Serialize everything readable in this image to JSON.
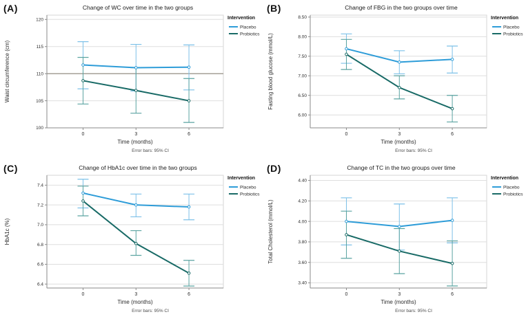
{
  "figure": {
    "legend": {
      "title": "Intervention",
      "items": [
        "Placebo",
        "Probiotics"
      ]
    },
    "colors": {
      "series_lines": [
        "#2D9CD8",
        "#186A66"
      ],
      "series_error": [
        "#7CC0E8",
        "#5AA3A1"
      ],
      "grid": "#DEDEDE",
      "reference_line": "#ABA69E",
      "axis": "#8A8A8A",
      "frame": "#D6D6D6",
      "text": "#2B2B2B",
      "title_text": "#1A1A1A"
    }
  },
  "chart_data": [
    {
      "id": "A",
      "panel_label": "(A)",
      "type": "line",
      "title": "Change of WC over time in the two groups",
      "ylabel": "Waist circumference (cm)",
      "xlabel": "Time (months)",
      "footnote": "Error bars: 95% CI",
      "x_categories": [
        "0",
        "3",
        "6"
      ],
      "ylim": [
        100,
        120.8
      ],
      "ytick_values": [
        100,
        105,
        110,
        115,
        120
      ],
      "ytick_labels": [
        "100",
        "105",
        "110",
        "115",
        "120"
      ],
      "reference_line": 110,
      "legend_position": "right",
      "grid": true,
      "series": [
        {
          "name": "Placebo",
          "values": [
            111.6,
            111.1,
            111.2
          ],
          "ci_low": [
            107.2,
            106.8,
            107.0
          ],
          "ci_high": [
            115.9,
            115.4,
            115.3
          ]
        },
        {
          "name": "Probiotics",
          "values": [
            108.7,
            106.9,
            105.0
          ],
          "ci_low": [
            104.4,
            102.7,
            101.0
          ],
          "ci_high": [
            113.0,
            111.1,
            109.1
          ]
        }
      ]
    },
    {
      "id": "B",
      "panel_label": "(B)",
      "type": "line",
      "title": "Change of FBG in the two groups over time",
      "ylabel": "Fasting blood glucose (mmol/L)",
      "xlabel": "Time (months)",
      "footnote": "Error bars: 95% CI",
      "x_categories": [
        "0",
        "3",
        "6"
      ],
      "ylim": [
        5.67,
        8.55
      ],
      "ytick_values": [
        6.0,
        6.5,
        7.0,
        7.5,
        8.0,
        8.5
      ],
      "ytick_labels": [
        "6.00",
        "6.50",
        "7.00",
        "7.50",
        "8.00",
        "8.50"
      ],
      "reference_line": null,
      "legend_position": "right",
      "grid": true,
      "series": [
        {
          "name": "Placebo",
          "values": [
            7.69,
            7.35,
            7.42
          ],
          "ci_low": [
            7.32,
            7.05,
            7.07
          ],
          "ci_high": [
            8.07,
            7.64,
            7.76
          ]
        },
        {
          "name": "Probiotics",
          "values": [
            7.55,
            6.7,
            6.16
          ],
          "ci_low": [
            7.16,
            6.41,
            5.82
          ],
          "ci_high": [
            7.93,
            7.0,
            6.5
          ]
        }
      ]
    },
    {
      "id": "C",
      "panel_label": "(C)",
      "type": "line",
      "title": "Change of HbA1c over time in the two groups",
      "ylabel": "HbA1c (%)",
      "xlabel": "Time (months)",
      "footnote": "Error bars: 95% CI",
      "x_categories": [
        "0",
        "3",
        "6"
      ],
      "ylim": [
        6.36,
        7.5
      ],
      "ytick_values": [
        6.4,
        6.6,
        6.8,
        7.0,
        7.2,
        7.4
      ],
      "ytick_labels": [
        "6.4",
        "6.6",
        "6.8",
        "7.0",
        "7.2",
        "7.4"
      ],
      "reference_line": null,
      "legend_position": "right",
      "grid": true,
      "series": [
        {
          "name": "Placebo",
          "values": [
            7.32,
            7.2,
            7.18
          ],
          "ci_low": [
            7.17,
            7.08,
            7.05
          ],
          "ci_high": [
            7.46,
            7.31,
            7.31
          ]
        },
        {
          "name": "Probiotics",
          "values": [
            7.24,
            6.81,
            6.51
          ],
          "ci_low": [
            7.09,
            6.69,
            6.38
          ],
          "ci_high": [
            7.39,
            6.94,
            6.64
          ]
        }
      ]
    },
    {
      "id": "D",
      "panel_label": "(D)",
      "type": "line",
      "title": "Change of TC in the two groups over time",
      "ylabel": "Total Cholesterol (mmol/L)",
      "xlabel": "Time (months)",
      "footnote": "Error bars: 95% CI",
      "x_categories": [
        "0",
        "3",
        "6"
      ],
      "ylim": [
        3.35,
        4.45
      ],
      "ytick_values": [
        3.4,
        3.6,
        3.8,
        4.0,
        4.2,
        4.4
      ],
      "ytick_labels": [
        "3.40",
        "3.60",
        "3.80",
        "4.00",
        "4.20",
        "4.40"
      ],
      "reference_line": null,
      "legend_position": "right",
      "grid": true,
      "series": [
        {
          "name": "Placebo",
          "values": [
            4.0,
            3.95,
            4.01
          ],
          "ci_low": [
            3.77,
            3.72,
            3.79
          ],
          "ci_high": [
            4.23,
            4.17,
            4.23
          ]
        },
        {
          "name": "Probiotics",
          "values": [
            3.87,
            3.71,
            3.59
          ],
          "ci_low": [
            3.64,
            3.49,
            3.37
          ],
          "ci_high": [
            4.1,
            3.93,
            3.81
          ]
        }
      ]
    }
  ]
}
